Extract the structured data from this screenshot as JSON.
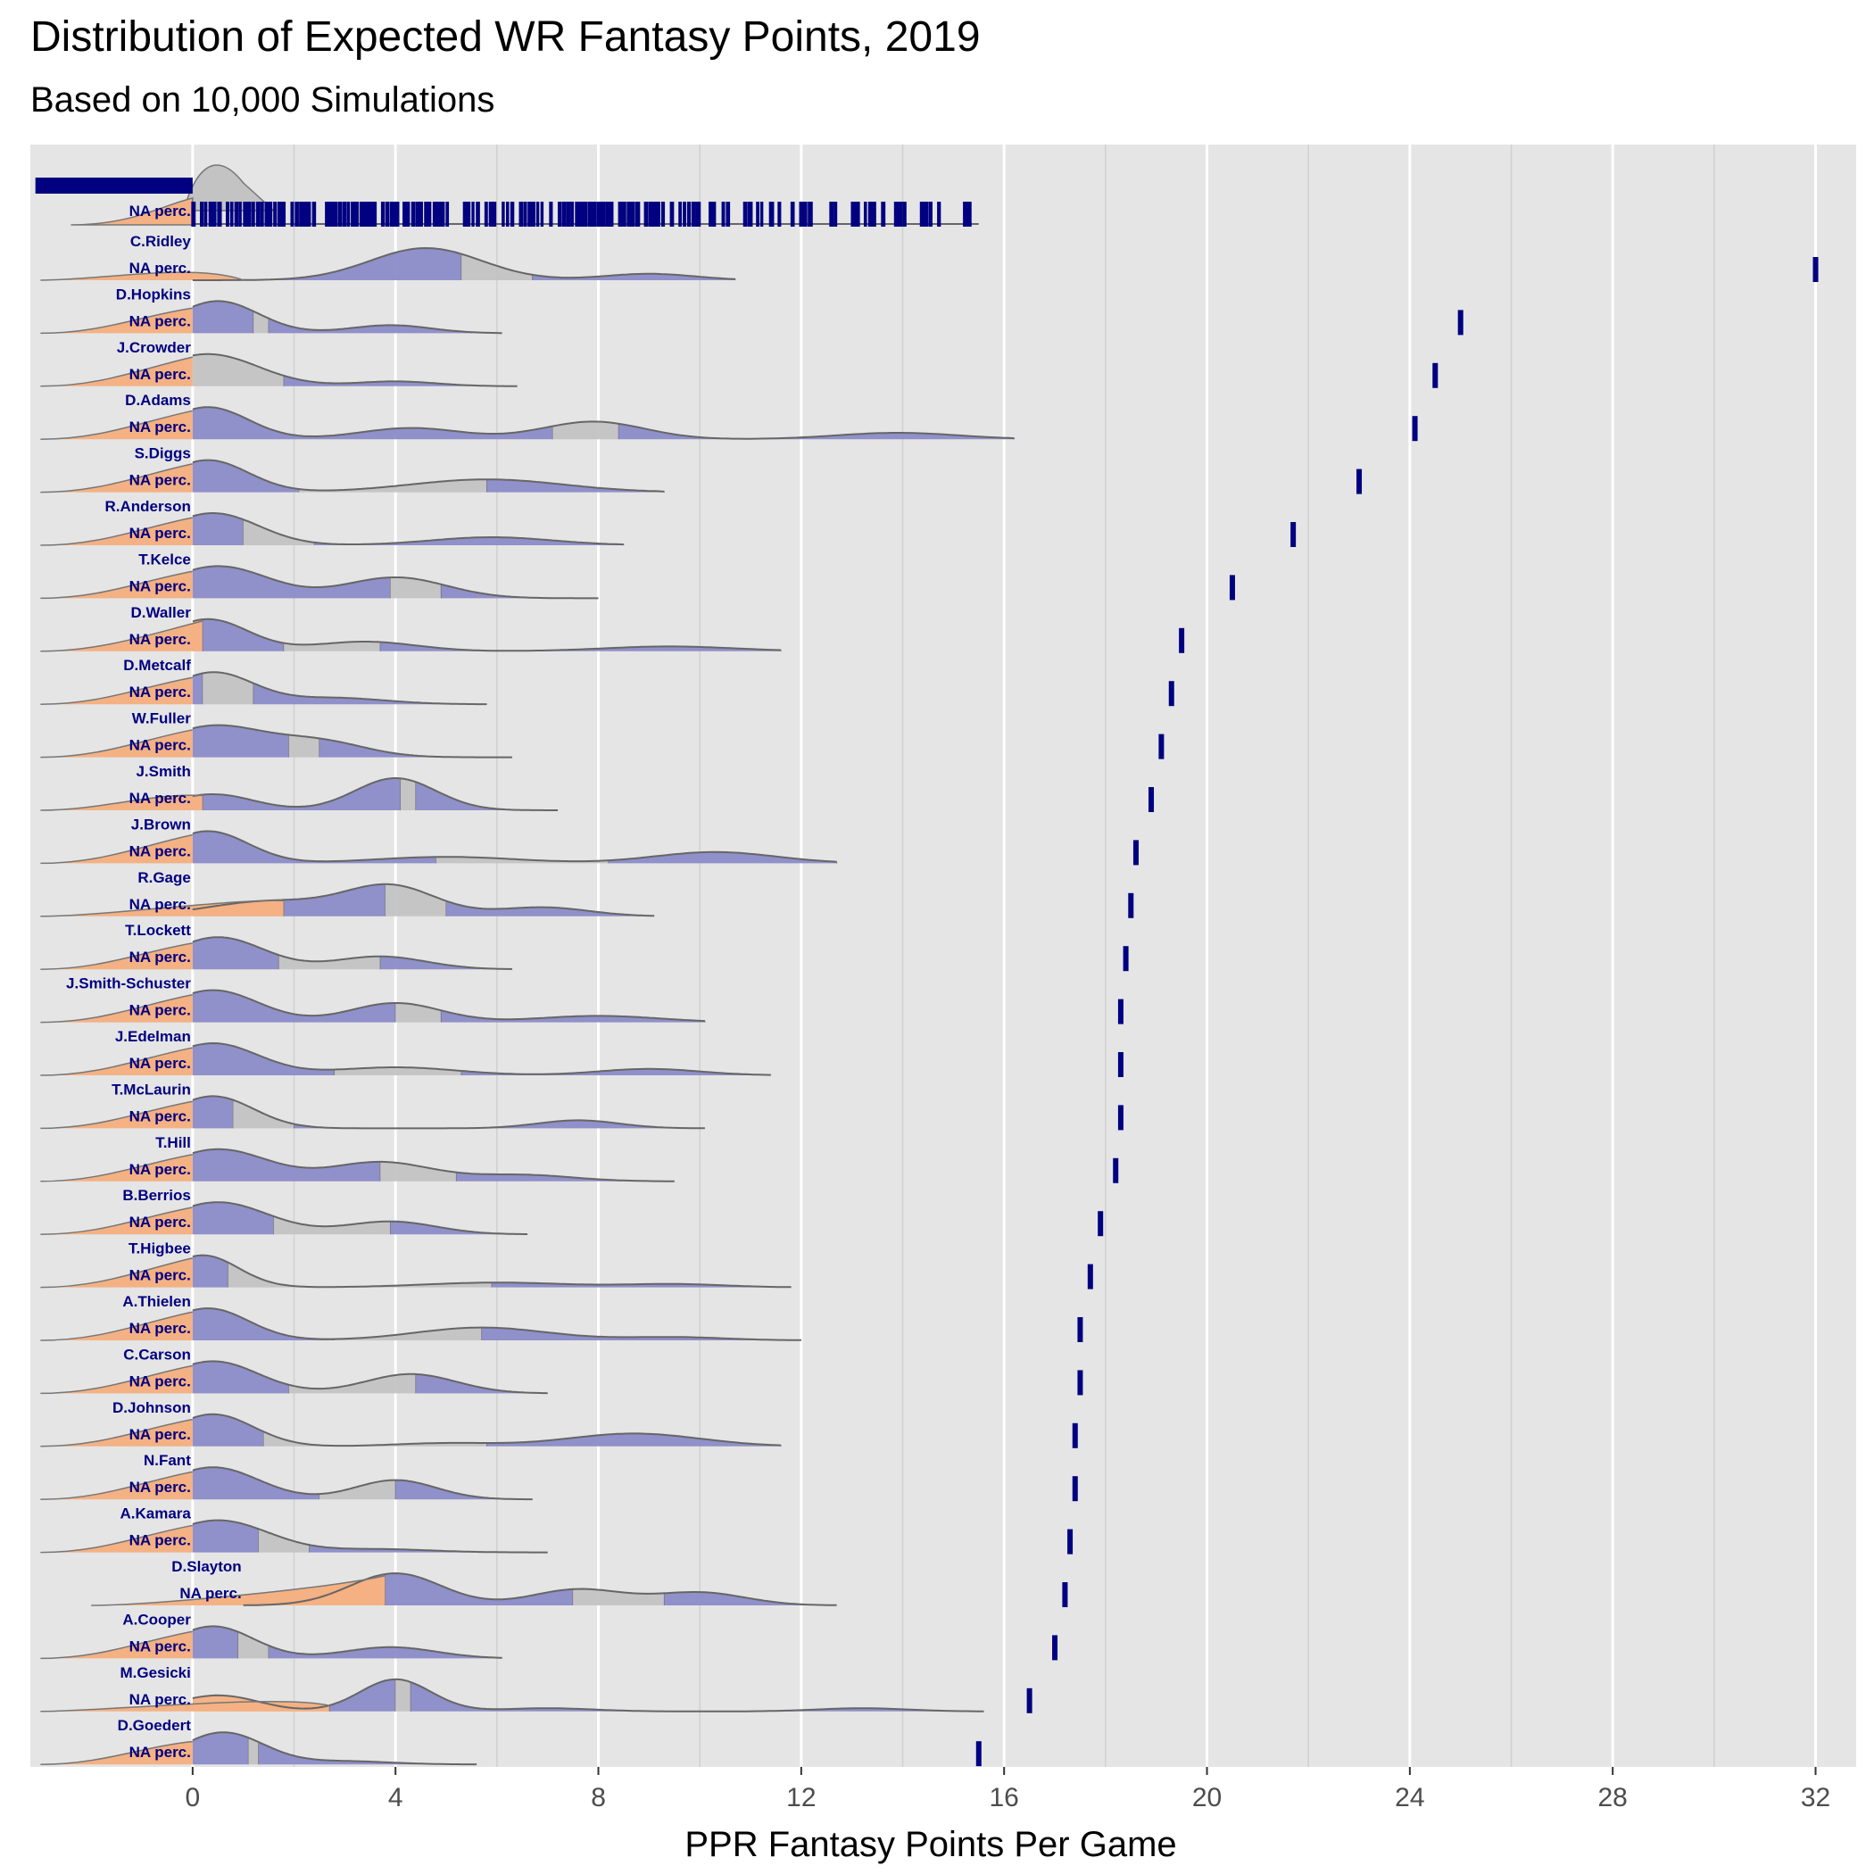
{
  "chart_data": {
    "type": "ridgeline",
    "title": "Distribution of Expected WR Fantasy Points, 2019",
    "subtitle": "Based on 10,000 Simulations",
    "xlabel": "PPR Fantasy Points Per Game",
    "xlim": [
      -3.2,
      32.8
    ],
    "x_ticks": [
      0,
      4,
      8,
      12,
      16,
      20,
      24,
      28,
      32
    ],
    "percentile_label": "NA perc.",
    "rows": [
      {
        "name": "C.Ridley",
        "mean": 32.0,
        "peaks": [
          [
            4.6,
            1.0,
            1.1
          ],
          [
            9.0,
            0.2,
            0.9
          ]
        ],
        "min": 0.0,
        "max": 10.7,
        "q": [
          1.0,
          5.3,
          6.7
        ]
      },
      {
        "name": "D.Hopkins",
        "mean": 25.0,
        "peaks": [
          [
            0.5,
            1.0,
            0.8
          ],
          [
            3.9,
            0.25,
            0.8
          ]
        ],
        "min": 0.0,
        "max": 6.1,
        "q": [
          0.0,
          1.2,
          1.5
        ]
      },
      {
        "name": "J.Crowder",
        "mean": 24.5,
        "peaks": [
          [
            0.3,
            1.0,
            1.0
          ],
          [
            4.0,
            0.15,
            0.8
          ]
        ],
        "min": 0.0,
        "max": 6.4,
        "q": [
          0.0,
          0.0,
          1.8
        ]
      },
      {
        "name": "D.Adams",
        "mean": 24.1,
        "peaks": [
          [
            0.3,
            1.0,
            0.8
          ],
          [
            4.3,
            0.35,
            1.0
          ],
          [
            7.9,
            0.55,
            1.0
          ],
          [
            13.9,
            0.2,
            1.2
          ]
        ],
        "min": 0.0,
        "max": 16.2,
        "q": [
          0.0,
          7.1,
          8.4
        ]
      },
      {
        "name": "S.Diggs",
        "mean": 23.0,
        "peaks": [
          [
            0.3,
            1.0,
            0.8
          ],
          [
            5.8,
            0.4,
            1.5
          ]
        ],
        "min": 0.0,
        "max": 9.3,
        "q": [
          0.0,
          2.1,
          5.8
        ]
      },
      {
        "name": "R.Anderson",
        "mean": 21.7,
        "peaks": [
          [
            0.4,
            1.0,
            0.9
          ],
          [
            5.9,
            0.25,
            1.2
          ]
        ],
        "min": 0.0,
        "max": 8.5,
        "q": [
          0.0,
          1.0,
          2.4
        ]
      },
      {
        "name": "T.Kelce",
        "mean": 20.5,
        "peaks": [
          [
            0.5,
            1.0,
            1.0
          ],
          [
            4.0,
            0.65,
            1.0
          ]
        ],
        "min": 0.0,
        "max": 8.0,
        "q": [
          0.0,
          3.9,
          4.9
        ]
      },
      {
        "name": "D.Waller",
        "mean": 19.5,
        "peaks": [
          [
            0.3,
            1.0,
            0.8
          ],
          [
            3.4,
            0.3,
            1.0
          ],
          [
            9.4,
            0.15,
            1.3
          ]
        ],
        "min": 0.0,
        "max": 11.6,
        "q": [
          0.2,
          1.8,
          3.7
        ]
      },
      {
        "name": "D.Metcalf",
        "mean": 19.3,
        "peaks": [
          [
            0.4,
            1.0,
            0.8
          ],
          [
            2.8,
            0.2,
            1.0
          ]
        ],
        "min": 0.0,
        "max": 5.8,
        "q": [
          0.0,
          0.2,
          1.2
        ]
      },
      {
        "name": "W.Fuller",
        "mean": 19.1,
        "peaks": [
          [
            0.4,
            1.0,
            1.0
          ],
          [
            2.5,
            0.5,
            0.9
          ]
        ],
        "min": 0.0,
        "max": 6.3,
        "q": [
          0.0,
          1.9,
          2.5
        ]
      },
      {
        "name": "J.Smith",
        "mean": 18.9,
        "peaks": [
          [
            0.4,
            0.5,
            0.8
          ],
          [
            4.0,
            1.0,
            0.8
          ]
        ],
        "min": 0.0,
        "max": 7.2,
        "q": [
          0.2,
          4.1,
          4.4
        ]
      },
      {
        "name": "J.Brown",
        "mean": 18.6,
        "peaks": [
          [
            0.3,
            1.0,
            0.8
          ],
          [
            5.0,
            0.2,
            1.4
          ],
          [
            10.3,
            0.35,
            1.2
          ]
        ],
        "min": 0.0,
        "max": 12.7,
        "q": [
          0.0,
          4.8,
          8.2
        ]
      },
      {
        "name": "R.Gage",
        "mean": 18.5,
        "peaks": [
          [
            1.5,
            0.5,
            1.2
          ],
          [
            3.9,
            1.0,
            0.9
          ],
          [
            6.9,
            0.3,
            0.9
          ]
        ],
        "min": 0.0,
        "max": 9.1,
        "q": [
          1.8,
          3.8,
          5.0
        ]
      },
      {
        "name": "T.Lockett",
        "mean": 18.4,
        "peaks": [
          [
            0.5,
            1.0,
            0.9
          ],
          [
            3.7,
            0.4,
            0.9
          ]
        ],
        "min": 0.0,
        "max": 6.3,
        "q": [
          0.0,
          1.7,
          3.7
        ]
      },
      {
        "name": "J.Smith-Schuster",
        "mean": 18.3,
        "peaks": [
          [
            0.4,
            1.0,
            0.9
          ],
          [
            4.0,
            0.6,
            0.9
          ],
          [
            8.0,
            0.2,
            1.2
          ]
        ],
        "min": 0.0,
        "max": 10.1,
        "q": [
          0.0,
          4.0,
          4.9
        ]
      },
      {
        "name": "J.Edelman",
        "mean": 18.3,
        "peaks": [
          [
            0.4,
            1.0,
            0.9
          ],
          [
            4.0,
            0.25,
            1.2
          ],
          [
            9.0,
            0.2,
            1.0
          ]
        ],
        "min": 0.0,
        "max": 11.4,
        "q": [
          0.0,
          2.8,
          5.3
        ]
      },
      {
        "name": "T.McLaurin",
        "mean": 18.3,
        "peaks": [
          [
            0.4,
            1.0,
            0.8
          ],
          [
            7.6,
            0.25,
            0.8
          ]
        ],
        "min": 0.0,
        "max": 10.1,
        "q": [
          0.0,
          0.8,
          2.0
        ]
      },
      {
        "name": "T.Hill",
        "mean": 18.2,
        "peaks": [
          [
            0.5,
            1.0,
            1.0
          ],
          [
            3.7,
            0.6,
            1.0
          ],
          [
            6.5,
            0.2,
            1.0
          ]
        ],
        "min": 0.0,
        "max": 9.5,
        "q": [
          0.0,
          3.7,
          5.2
        ]
      },
      {
        "name": "B.Berrios",
        "mean": 17.9,
        "peaks": [
          [
            0.5,
            1.0,
            1.0
          ],
          [
            3.9,
            0.4,
            0.9
          ]
        ],
        "min": 0.0,
        "max": 6.6,
        "q": [
          0.0,
          1.6,
          3.9
        ]
      },
      {
        "name": "T.Higbee",
        "mean": 17.7,
        "peaks": [
          [
            0.2,
            1.0,
            0.7
          ],
          [
            6.0,
            0.15,
            1.4
          ],
          [
            9.5,
            0.1,
            1.0
          ]
        ],
        "min": 0.0,
        "max": 11.8,
        "q": [
          0.0,
          0.7,
          5.9
        ]
      },
      {
        "name": "A.Thielen",
        "mean": 17.5,
        "peaks": [
          [
            0.3,
            1.0,
            0.8
          ],
          [
            5.7,
            0.4,
            1.3
          ],
          [
            9.5,
            0.1,
            1.0
          ]
        ],
        "min": 0.0,
        "max": 12.0,
        "q": [
          0.0,
          2.8,
          5.7
        ]
      },
      {
        "name": "C.Carson",
        "mean": 17.5,
        "peaks": [
          [
            0.4,
            1.0,
            0.9
          ],
          [
            4.3,
            0.6,
            0.9
          ]
        ],
        "min": 0.0,
        "max": 7.0,
        "q": [
          0.0,
          1.9,
          4.4
        ]
      },
      {
        "name": "D.Johnson",
        "mean": 17.4,
        "peaks": [
          [
            0.4,
            1.0,
            0.8
          ],
          [
            5.0,
            0.1,
            1.0
          ],
          [
            8.7,
            0.4,
            1.3
          ]
        ],
        "min": 0.0,
        "max": 11.6,
        "q": [
          0.0,
          1.4,
          5.8
        ]
      },
      {
        "name": "N.Fant",
        "mean": 17.4,
        "peaks": [
          [
            0.4,
            1.0,
            0.9
          ],
          [
            4.0,
            0.6,
            0.8
          ]
        ],
        "min": 0.0,
        "max": 6.7,
        "q": [
          0.0,
          2.5,
          4.0
        ]
      },
      {
        "name": "A.Kamara",
        "mean": 17.3,
        "peaks": [
          [
            0.5,
            1.0,
            1.0
          ],
          [
            3.7,
            0.1,
            1.0
          ]
        ],
        "min": 0.0,
        "max": 7.0,
        "q": [
          0.0,
          1.3,
          2.3
        ]
      },
      {
        "name": "D.Slayton",
        "mean": 17.2,
        "peaks": [
          [
            4.0,
            1.0,
            0.9
          ],
          [
            7.6,
            0.5,
            0.9
          ],
          [
            10.0,
            0.4,
            0.9
          ]
        ],
        "min": 1.0,
        "max": 12.7,
        "q": [
          3.8,
          7.5,
          9.3
        ]
      },
      {
        "name": "A.Cooper",
        "mean": 17.0,
        "peaks": [
          [
            0.4,
            1.0,
            0.8
          ],
          [
            3.9,
            0.35,
            0.9
          ]
        ],
        "min": 0.0,
        "max": 6.1,
        "q": [
          0.0,
          0.9,
          1.5
        ]
      },
      {
        "name": "M.Gesicki",
        "mean": 16.5,
        "peaks": [
          [
            0.5,
            0.5,
            0.8
          ],
          [
            4.0,
            1.0,
            0.7
          ],
          [
            7.0,
            0.1,
            0.9
          ],
          [
            13.2,
            0.1,
            0.9
          ]
        ],
        "min": 0.0,
        "max": 15.6,
        "q": [
          2.7,
          4.0,
          4.3
        ]
      },
      {
        "name": "D.Goedert",
        "mean": 15.5,
        "peaks": [
          [
            0.6,
            1.0,
            0.8
          ],
          [
            3.0,
            0.1,
            0.9
          ]
        ],
        "min": 0.0,
        "max": 5.6,
        "q": [
          0.0,
          1.1,
          1.3
        ]
      }
    ]
  }
}
